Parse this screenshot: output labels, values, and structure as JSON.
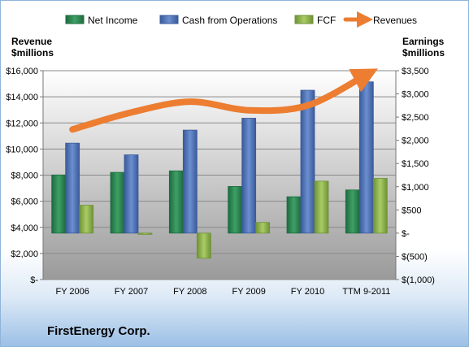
{
  "company": "FirstEnergy Corp.",
  "chart_data": {
    "type": "bar",
    "categories": [
      "FY 2006",
      "FY 2007",
      "FY 2008",
      "FY 2009",
      "FY 2010",
      "TTM 9-2011"
    ],
    "left_axis": {
      "title_lines": [
        "Revenue",
        "$millions"
      ],
      "range": [
        0,
        16000
      ],
      "ticks": [
        0,
        2000,
        4000,
        6000,
        8000,
        10000,
        12000,
        14000,
        16000
      ],
      "tick_labels": [
        "$-",
        "$2,000",
        "$4,000",
        "$6,000",
        "$8,000",
        "$10,000",
        "$12,000",
        "$14,000",
        "$16,000"
      ]
    },
    "right_axis": {
      "title_lines": [
        "Earnings",
        "$millions"
      ],
      "range": [
        -1000,
        3500
      ],
      "ticks": [
        -1000,
        -500,
        0,
        500,
        1000,
        1500,
        2000,
        2500,
        3000,
        3500
      ],
      "tick_labels": [
        "$(1,000)",
        "$(500)",
        "$-",
        "$500",
        "$1,000",
        "$1,500",
        "$2,000",
        "$2,500",
        "$3,000",
        "$3,500"
      ]
    },
    "series": [
      {
        "name": "Net Income",
        "kind": "bar",
        "axis": "right",
        "color": "#2e8b57",
        "values": [
          1254,
          1309,
          1342,
          1006,
          784,
          930
        ]
      },
      {
        "name": "Cash from Operations",
        "kind": "bar",
        "axis": "right",
        "color": "#4a6fb5",
        "values": [
          1939,
          1687,
          2220,
          2476,
          3079,
          3260
        ]
      },
      {
        "name": "FCF",
        "kind": "bar",
        "axis": "right",
        "color": "#8cb44a",
        "values": [
          600,
          -25,
          -540,
          230,
          1120,
          1180
        ]
      },
      {
        "name": "Revenues",
        "kind": "line",
        "axis": "left",
        "color": "#ec7d31",
        "values": [
          11500,
          12802,
          13627,
          12967,
          13339,
          15700
        ]
      }
    ],
    "grid": true,
    "legend_position": "top"
  }
}
